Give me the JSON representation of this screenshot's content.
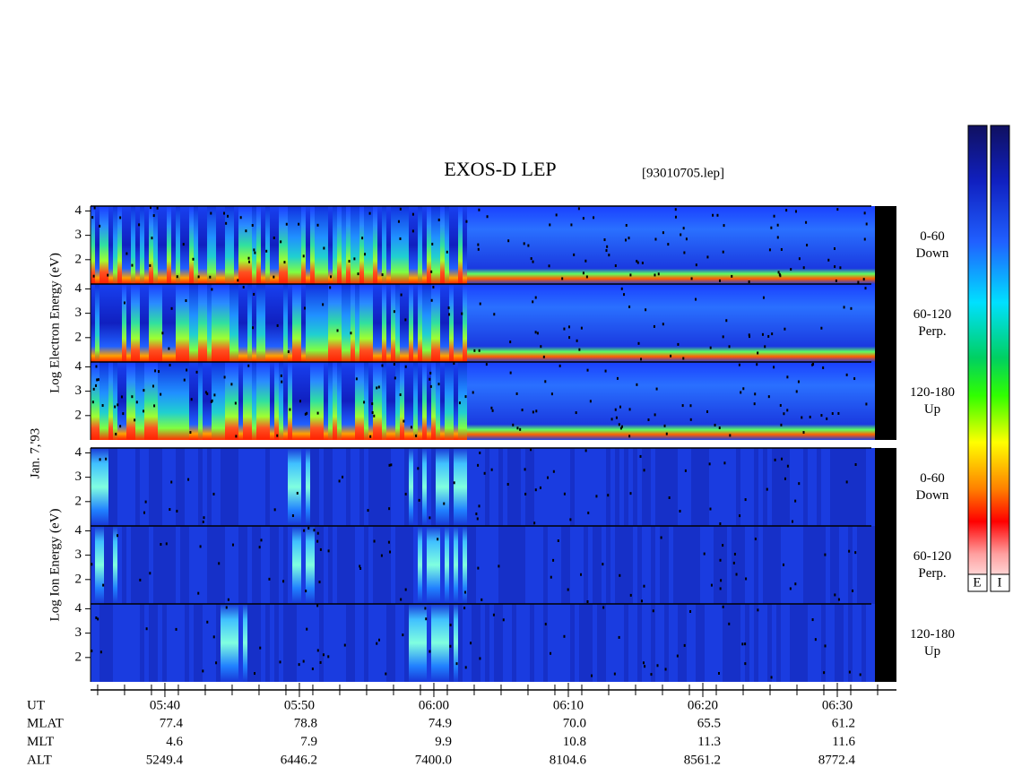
{
  "chart_data": {
    "type": "spectrogram",
    "title": "EXOS-D LEP",
    "subtitle": "[93010705.lep]",
    "date": "Jan. 7,'93",
    "xlim": [
      334.47,
      394.4
    ],
    "xticks": [
      {
        "value": 340,
        "label": "05:40"
      },
      {
        "value": 350,
        "label": "05:50"
      },
      {
        "value": 360,
        "label": "06:00"
      },
      {
        "value": 370,
        "label": "06:10"
      },
      {
        "value": 380,
        "label": "06:20"
      },
      {
        "value": 390,
        "label": "06:30"
      }
    ],
    "ylim": [
      1,
      4.2
    ],
    "yticks": [
      2,
      3,
      4
    ],
    "groups": [
      {
        "ylabel": "Log Electron Energy (eV)",
        "panels": [
          {
            "range": "0-60",
            "dir": "Down"
          },
          {
            "range": "60-120",
            "dir": "Perp."
          },
          {
            "range": "120-180",
            "dir": "Up"
          }
        ]
      },
      {
        "ylabel": "Log Ion Energy (eV)",
        "panels": [
          {
            "range": "0-60",
            "dir": "Down"
          },
          {
            "range": "60-120",
            "dir": "Perp."
          },
          {
            "range": "120-180",
            "dir": "Up"
          }
        ]
      }
    ],
    "colorbar_labels": [
      "E",
      "I"
    ],
    "readout": {
      "label": "UT",
      "rows": [
        {
          "name": "MLAT",
          "values": [
            "77.4",
            "78.8",
            "74.9",
            "70.0",
            "65.5",
            "61.2"
          ]
        },
        {
          "name": "MLT",
          "values": [
            "4.6",
            "7.9",
            "9.9",
            "10.8",
            "11.3",
            "11.6"
          ]
        },
        {
          "name": "ALT",
          "values": [
            "5249.4",
            "6446.2",
            "7400.0",
            "8104.6",
            "8561.2",
            "8772.4"
          ]
        }
      ]
    }
  }
}
